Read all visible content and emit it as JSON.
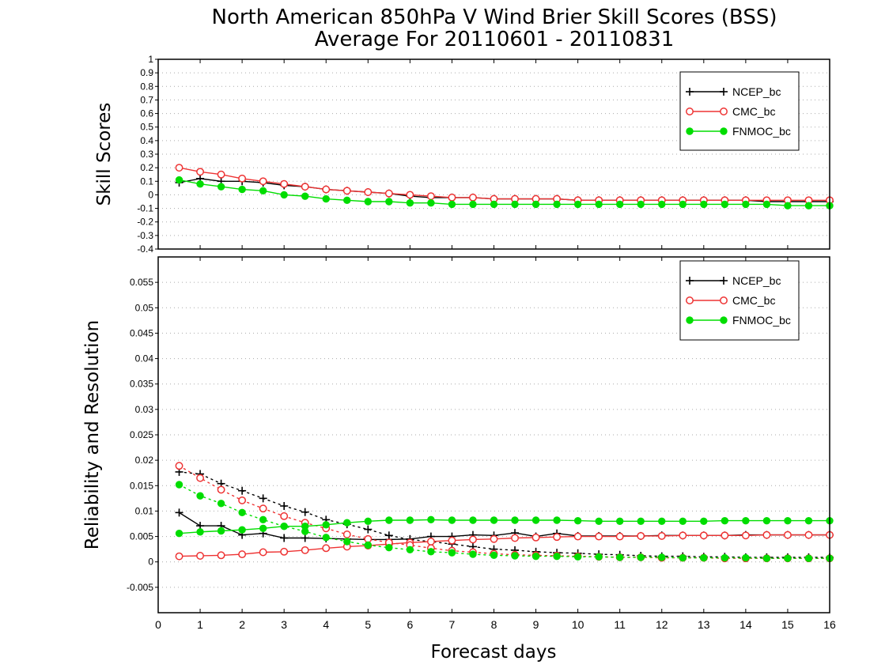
{
  "title_line1": "North American 850hPa V Wind Brier Skill Scores (BSS)",
  "title_line2": "Average For 20110601 - 20110831",
  "colors": {
    "NCEP_bc": "#000000",
    "CMC_bc": "#ee3333",
    "FNMOC_bc": "#00dd00"
  },
  "chart_data": [
    {
      "type": "line",
      "ylabel": "Skill Scores",
      "xlim": [
        0,
        16
      ],
      "ylim": [
        -0.4,
        1
      ],
      "yticks": [
        -0.4,
        -0.3,
        -0.2,
        -0.1,
        0,
        0.1,
        0.2,
        0.3,
        0.4,
        0.5,
        0.6,
        0.7,
        0.8,
        0.9,
        1
      ],
      "ytick_labels": [
        "-0.4",
        "-0.3",
        "-0.2",
        "-0.1",
        "0",
        "0.1",
        "0.2",
        "0.3",
        "0.4",
        "0.5",
        "0.6",
        "0.7",
        "0.8",
        "0.9",
        "1"
      ],
      "grid": true,
      "legend": {
        "placement": "top-right",
        "entries": [
          "NCEP_bc",
          "CMC_bc",
          "FNMOC_bc"
        ]
      },
      "x": [
        0.5,
        1,
        1.5,
        2,
        2.5,
        3,
        3.5,
        4,
        4.5,
        5,
        5.5,
        6,
        6.5,
        7,
        7.5,
        8,
        8.5,
        9,
        9.5,
        10,
        10.5,
        11,
        11.5,
        12,
        12.5,
        13,
        13.5,
        14,
        14.5,
        15,
        15.5,
        16
      ],
      "series": [
        {
          "name": "NCEP_bc",
          "marker": "plus",
          "style": "solid",
          "values": [
            0.09,
            0.12,
            0.1,
            0.1,
            0.09,
            0.07,
            0.06,
            0.04,
            0.03,
            0.02,
            0.01,
            -0.01,
            -0.02,
            -0.02,
            -0.02,
            -0.03,
            -0.03,
            -0.03,
            -0.03,
            -0.04,
            -0.04,
            -0.04,
            -0.04,
            -0.04,
            -0.04,
            -0.04,
            -0.04,
            -0.04,
            -0.05,
            -0.05,
            -0.05,
            -0.05
          ]
        },
        {
          "name": "CMC_bc",
          "marker": "open-circle",
          "style": "solid",
          "values": [
            0.2,
            0.17,
            0.15,
            0.12,
            0.1,
            0.08,
            0.06,
            0.04,
            0.03,
            0.02,
            0.01,
            0.0,
            -0.01,
            -0.02,
            -0.02,
            -0.03,
            -0.03,
            -0.03,
            -0.03,
            -0.04,
            -0.04,
            -0.04,
            -0.04,
            -0.04,
            -0.04,
            -0.04,
            -0.04,
            -0.04,
            -0.04,
            -0.04,
            -0.04,
            -0.04
          ]
        },
        {
          "name": "FNMOC_bc",
          "marker": "filled-circle",
          "style": "solid",
          "values": [
            0.11,
            0.08,
            0.06,
            0.04,
            0.03,
            0.0,
            -0.01,
            -0.03,
            -0.04,
            -0.05,
            -0.05,
            -0.06,
            -0.06,
            -0.07,
            -0.07,
            -0.07,
            -0.07,
            -0.07,
            -0.07,
            -0.07,
            -0.07,
            -0.07,
            -0.07,
            -0.07,
            -0.07,
            -0.07,
            -0.07,
            -0.07,
            -0.07,
            -0.08,
            -0.08,
            -0.08
          ]
        }
      ]
    },
    {
      "type": "line",
      "ylabel": "Reliability and Resolution",
      "xlabel": "Forecast days",
      "xlim": [
        0,
        16
      ],
      "ylim": [
        -0.01,
        0.06
      ],
      "yticks": [
        -0.005,
        0,
        0.005,
        0.01,
        0.015,
        0.02,
        0.025,
        0.03,
        0.035,
        0.04,
        0.045,
        0.05,
        0.055
      ],
      "ytick_labels": [
        "-0.005",
        "0",
        "0.005",
        "0.01",
        "0.015",
        "0.02",
        "0.025",
        "0.03",
        "0.035",
        "0.04",
        "0.045",
        "0.05",
        "0.055"
      ],
      "xticks": [
        0,
        1,
        2,
        3,
        4,
        5,
        6,
        7,
        8,
        9,
        10,
        11,
        12,
        13,
        14,
        15,
        16
      ],
      "xtick_labels": [
        "0",
        "1",
        "2",
        "3",
        "4",
        "5",
        "6",
        "7",
        "8",
        "9",
        "10",
        "11",
        "12",
        "13",
        "14",
        "15",
        "16"
      ],
      "grid": true,
      "legend": {
        "placement": "top-right",
        "entries": [
          "NCEP_bc",
          "CMC_bc",
          "FNMOC_bc"
        ]
      },
      "x": [
        0.5,
        1,
        1.5,
        2,
        2.5,
        3,
        3.5,
        4,
        4.5,
        5,
        5.5,
        6,
        6.5,
        7,
        7.5,
        8,
        8.5,
        9,
        9.5,
        10,
        10.5,
        11,
        11.5,
        12,
        12.5,
        13,
        13.5,
        14,
        14.5,
        15,
        15.5,
        16
      ],
      "series": [
        {
          "name": "NCEP_bc",
          "marker": "plus",
          "style": "solid",
          "values": [
            0.0097,
            0.0071,
            0.0071,
            0.0053,
            0.0056,
            0.0047,
            0.0047,
            0.0046,
            0.0045,
            0.0044,
            0.0044,
            0.0045,
            0.005,
            0.005,
            0.0053,
            0.0052,
            0.0057,
            0.005,
            0.0056,
            0.0051,
            0.0051,
            0.0051,
            0.0051,
            0.0052,
            0.0052,
            0.0052,
            0.0052,
            0.0053,
            0.0053,
            0.0053,
            0.0053,
            0.0053
          ]
        },
        {
          "name": "NCEP_bc",
          "marker": "plus",
          "style": "dotted",
          "values": [
            0.0177,
            0.0173,
            0.0154,
            0.014,
            0.0125,
            0.011,
            0.0098,
            0.0083,
            0.0074,
            0.0064,
            0.0052,
            0.0044,
            0.004,
            0.0035,
            0.003,
            0.0025,
            0.0023,
            0.002,
            0.0018,
            0.0017,
            0.0015,
            0.0014,
            0.0012,
            0.0011,
            0.0011,
            0.001,
            0.001,
            0.0009,
            0.0009,
            0.0009,
            0.0009,
            0.0009
          ]
        },
        {
          "name": "CMC_bc",
          "marker": "open-circle",
          "style": "solid",
          "values": [
            0.0011,
            0.0012,
            0.0013,
            0.0015,
            0.0019,
            0.002,
            0.0023,
            0.0027,
            0.003,
            0.0032,
            0.0035,
            0.0038,
            0.004,
            0.0042,
            0.0044,
            0.0045,
            0.0047,
            0.0048,
            0.0049,
            0.005,
            0.005,
            0.005,
            0.0051,
            0.0051,
            0.0052,
            0.0052,
            0.0052,
            0.0052,
            0.0053,
            0.0053,
            0.0053,
            0.0053
          ]
        },
        {
          "name": "CMC_bc",
          "marker": "open-circle",
          "style": "dotted",
          "values": [
            0.0189,
            0.0165,
            0.0142,
            0.0121,
            0.0105,
            0.009,
            0.0077,
            0.0066,
            0.0054,
            0.0045,
            0.0038,
            0.0033,
            0.0027,
            0.0022,
            0.0019,
            0.0016,
            0.0014,
            0.0013,
            0.0012,
            0.0011,
            0.001,
            0.0009,
            0.0009,
            0.0008,
            0.0008,
            0.0008,
            0.0007,
            0.0007,
            0.0007,
            0.0007,
            0.0007,
            0.0007
          ]
        },
        {
          "name": "FNMOC_bc",
          "marker": "filled-circle",
          "style": "solid",
          "values": [
            0.0056,
            0.0059,
            0.0061,
            0.0063,
            0.0066,
            0.007,
            0.007,
            0.0073,
            0.0077,
            0.008,
            0.0082,
            0.0082,
            0.0083,
            0.0082,
            0.0082,
            0.0082,
            0.0082,
            0.0082,
            0.0082,
            0.0081,
            0.008,
            0.008,
            0.008,
            0.008,
            0.008,
            0.008,
            0.0081,
            0.0081,
            0.0081,
            0.0081,
            0.0081,
            0.0081
          ]
        },
        {
          "name": "FNMOC_bc",
          "marker": "filled-circle",
          "style": "dotted",
          "values": [
            0.0152,
            0.013,
            0.0115,
            0.0097,
            0.0083,
            0.007,
            0.006,
            0.0048,
            0.004,
            0.0033,
            0.0028,
            0.0024,
            0.002,
            0.0018,
            0.0015,
            0.0013,
            0.0012,
            0.0011,
            0.0011,
            0.001,
            0.001,
            0.0009,
            0.0009,
            0.0009,
            0.0008,
            0.0008,
            0.0008,
            0.0008,
            0.0007,
            0.0007,
            0.0007,
            0.0007
          ]
        }
      ]
    }
  ]
}
